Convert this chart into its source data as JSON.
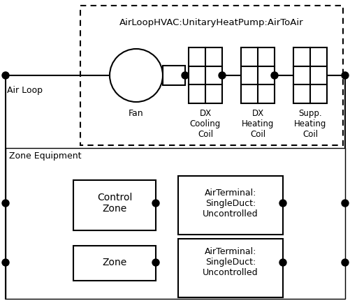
{
  "bg_color": "#ffffff",
  "line_color": "#000000",
  "dot_color": "#000000",
  "title": "AirLoopHVAC:UnitaryHeatPump:AirToAir",
  "fan_label": "Fan",
  "dx_cool_label": "DX\nCooling\nCoil",
  "dx_heat_label": "DX\nHeating\nCoil",
  "supp_heat_label": "Supp.\nHeating\nCoil",
  "air_loop_label": "Air Loop",
  "zone_equip_label": "Zone Equipment",
  "control_zone_label": "Control\nZone",
  "zone_label": "Zone",
  "air_terminal_label": "AirTerminal:\nSingleDuct:\nUncontrolled",
  "figsize": [
    5.02,
    4.34
  ],
  "dpi": 100
}
